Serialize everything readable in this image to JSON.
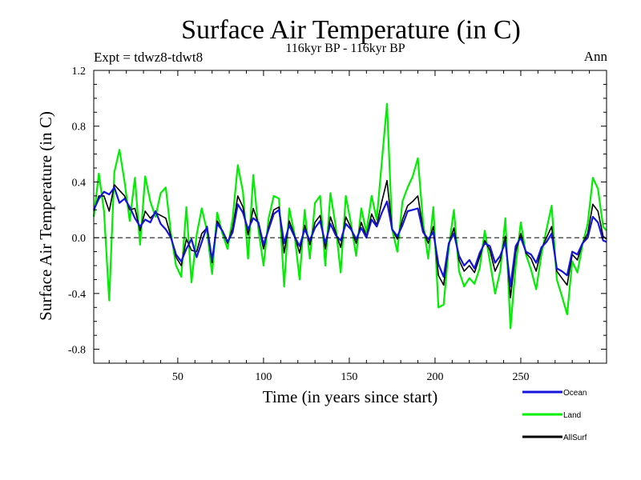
{
  "chart_data": {
    "type": "line",
    "title": "Surface Air Temperature (in C)",
    "subtitle": "116kyr BP - 116kyr BP",
    "expt_label": "Expt = tdwz8-tdwt8",
    "season": "Ann",
    "xlabel": "Time (in years since start)",
    "ylabel": "Surface Air Temperature (in C)",
    "xlim": [
      1,
      300
    ],
    "ylim": [
      -0.9,
      1.2
    ],
    "xticks": [
      50,
      100,
      150,
      200,
      250
    ],
    "yticks": [
      1.2,
      0.8,
      0.4,
      0.0,
      -0.4,
      -0.8
    ],
    "ytick_labels": [
      "1.2",
      "0.8",
      "0.4",
      "0.0",
      "-0.4",
      "-0.8"
    ],
    "zero_line": "dashed",
    "legend_position": "bottom-right, below plot",
    "colors": {
      "Ocean": "#1414dc",
      "Land": "#00ee00",
      "AllSurf": "#000000"
    },
    "series": [
      {
        "name": "Ocean",
        "x": [
          1,
          4,
          7,
          10,
          13,
          16,
          19,
          22,
          25,
          28,
          31,
          34,
          37,
          40,
          43,
          46,
          49,
          52,
          55,
          58,
          61,
          64,
          67,
          70,
          73,
          76,
          79,
          82,
          85,
          88,
          91,
          94,
          97,
          100,
          103,
          106,
          109,
          112,
          115,
          118,
          121,
          124,
          127,
          130,
          133,
          136,
          139,
          142,
          145,
          148,
          151,
          154,
          157,
          160,
          163,
          166,
          169,
          172,
          175,
          178,
          181,
          184,
          187,
          190,
          193,
          196,
          199,
          202,
          205,
          208,
          211,
          214,
          217,
          220,
          223,
          226,
          229,
          232,
          235,
          238,
          241,
          244,
          247,
          250,
          253,
          256,
          259,
          262,
          265,
          268,
          271,
          274,
          277,
          280,
          283,
          286,
          289,
          292,
          295,
          298,
          300
        ],
        "values": [
          0.2,
          0.28,
          0.33,
          0.31,
          0.36,
          0.25,
          0.28,
          0.22,
          0.14,
          0.08,
          0.13,
          0.11,
          0.19,
          0.1,
          0.06,
          0.0,
          -0.12,
          -0.17,
          -0.08,
          -0.01,
          -0.14,
          -0.03,
          0.08,
          -0.16,
          0.1,
          0.05,
          -0.03,
          0.04,
          0.24,
          0.18,
          0.06,
          0.14,
          0.11,
          -0.05,
          0.06,
          0.17,
          0.2,
          -0.04,
          0.09,
          0.01,
          -0.06,
          0.06,
          -0.02,
          0.07,
          0.12,
          -0.04,
          0.1,
          0.02,
          -0.02,
          0.1,
          0.06,
          -0.01,
          0.07,
          0.0,
          0.13,
          0.08,
          0.18,
          0.26,
          0.06,
          0.01,
          0.09,
          0.19,
          0.2,
          0.21,
          0.04,
          -0.01,
          0.04,
          -0.19,
          -0.28,
          -0.04,
          0.03,
          -0.13,
          -0.2,
          -0.16,
          -0.22,
          -0.11,
          -0.04,
          -0.06,
          -0.18,
          -0.13,
          -0.03,
          -0.35,
          -0.06,
          0.0,
          -0.1,
          -0.12,
          -0.18,
          -0.07,
          -0.03,
          0.03,
          -0.22,
          -0.24,
          -0.27,
          -0.1,
          -0.12,
          -0.04,
          0.0,
          0.15,
          0.11,
          -0.02,
          -0.03
        ]
      },
      {
        "name": "Land",
        "x": [
          1,
          4,
          7,
          10,
          13,
          16,
          19,
          22,
          25,
          28,
          31,
          34,
          37,
          40,
          43,
          46,
          49,
          52,
          55,
          58,
          61,
          64,
          67,
          70,
          73,
          76,
          79,
          82,
          85,
          88,
          91,
          94,
          97,
          100,
          103,
          106,
          109,
          112,
          115,
          118,
          121,
          124,
          127,
          130,
          133,
          136,
          139,
          142,
          145,
          148,
          151,
          154,
          157,
          160,
          163,
          166,
          169,
          172,
          175,
          178,
          181,
          184,
          187,
          190,
          193,
          196,
          199,
          202,
          205,
          208,
          211,
          214,
          217,
          220,
          223,
          226,
          229,
          232,
          235,
          238,
          241,
          244,
          247,
          250,
          253,
          256,
          259,
          262,
          265,
          268,
          271,
          274,
          277,
          280,
          283,
          286,
          289,
          292,
          295,
          298,
          300
        ],
        "values": [
          0.15,
          0.46,
          0.19,
          -0.45,
          0.47,
          0.63,
          0.4,
          0.12,
          0.43,
          -0.05,
          0.44,
          0.26,
          0.15,
          0.32,
          0.36,
          0.03,
          -0.2,
          -0.28,
          0.22,
          -0.32,
          0.02,
          0.21,
          0.05,
          -0.26,
          0.18,
          0.03,
          -0.08,
          0.14,
          0.52,
          0.33,
          -0.15,
          0.45,
          0.06,
          -0.2,
          0.14,
          0.3,
          0.28,
          -0.35,
          0.21,
          0.03,
          -0.3,
          0.2,
          -0.15,
          0.25,
          0.3,
          -0.2,
          0.32,
          0.09,
          -0.25,
          0.3,
          0.1,
          -0.13,
          0.21,
          0.04,
          0.3,
          0.13,
          0.55,
          0.96,
          0.06,
          -0.1,
          0.26,
          0.36,
          0.44,
          0.57,
          0.11,
          -0.15,
          0.22,
          -0.5,
          -0.48,
          -0.07,
          0.2,
          -0.24,
          -0.35,
          -0.29,
          -0.33,
          -0.22,
          0.05,
          -0.17,
          -0.4,
          -0.24,
          0.14,
          -0.65,
          -0.2,
          0.11,
          -0.12,
          -0.23,
          -0.37,
          -0.12,
          0.06,
          0.23,
          -0.3,
          -0.42,
          -0.55,
          -0.17,
          -0.25,
          -0.05,
          0.1,
          0.43,
          0.35,
          0.08,
          0.05
        ]
      },
      {
        "name": "AllSurf",
        "x": [
          1,
          4,
          7,
          10,
          13,
          16,
          19,
          22,
          25,
          28,
          31,
          34,
          37,
          40,
          43,
          46,
          49,
          52,
          55,
          58,
          61,
          64,
          67,
          70,
          73,
          76,
          79,
          82,
          85,
          88,
          91,
          94,
          97,
          100,
          103,
          106,
          109,
          112,
          115,
          118,
          121,
          124,
          127,
          130,
          133,
          136,
          139,
          142,
          145,
          148,
          151,
          154,
          157,
          160,
          163,
          166,
          169,
          172,
          175,
          178,
          181,
          184,
          187,
          190,
          193,
          196,
          199,
          202,
          205,
          208,
          211,
          214,
          217,
          220,
          223,
          226,
          229,
          232,
          235,
          238,
          241,
          244,
          247,
          250,
          253,
          256,
          259,
          262,
          265,
          268,
          271,
          274,
          277,
          280,
          283,
          286,
          289,
          292,
          295,
          298,
          300
        ],
        "values": [
          0.19,
          0.3,
          0.3,
          0.19,
          0.38,
          0.34,
          0.3,
          0.2,
          0.21,
          0.05,
          0.19,
          0.14,
          0.18,
          0.16,
          0.14,
          0.01,
          -0.14,
          -0.2,
          -0.01,
          -0.09,
          -0.1,
          0.03,
          0.07,
          -0.18,
          0.12,
          0.05,
          -0.04,
          0.07,
          0.3,
          0.22,
          0.02,
          0.21,
          0.1,
          -0.08,
          0.08,
          0.2,
          0.22,
          -0.11,
          0.12,
          0.02,
          -0.11,
          0.09,
          -0.05,
          0.11,
          0.16,
          -0.08,
          0.15,
          0.04,
          -0.07,
          0.15,
          0.07,
          -0.04,
          0.11,
          0.01,
          0.17,
          0.09,
          0.26,
          0.41,
          0.06,
          -0.01,
          0.13,
          0.23,
          0.26,
          0.3,
          0.06,
          -0.04,
          0.08,
          -0.27,
          -0.34,
          -0.05,
          0.07,
          -0.16,
          -0.24,
          -0.2,
          -0.25,
          -0.14,
          -0.02,
          -0.09,
          -0.24,
          -0.16,
          0.01,
          -0.43,
          -0.1,
          0.03,
          -0.11,
          -0.15,
          -0.24,
          -0.08,
          0.0,
          0.08,
          -0.24,
          -0.29,
          -0.34,
          -0.12,
          -0.16,
          -0.04,
          0.03,
          0.24,
          0.19,
          0.01,
          -0.01
        ]
      }
    ]
  }
}
